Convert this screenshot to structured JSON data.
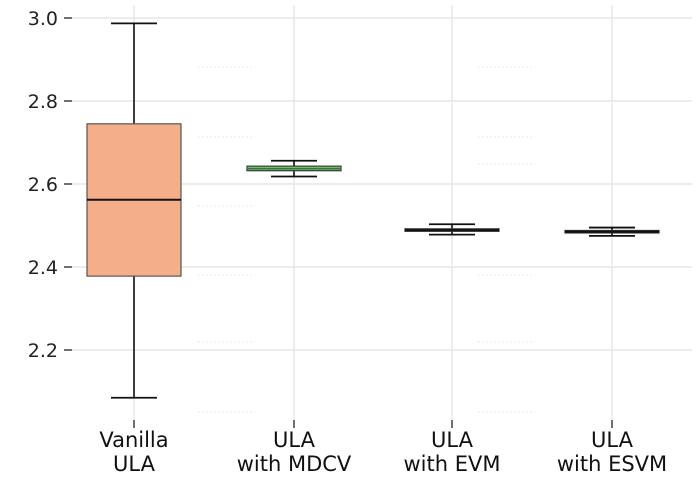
{
  "chart_data": {
    "type": "box",
    "title": "",
    "xlabel": "",
    "ylabel": "",
    "ylim": [
      2.04,
      3.02
    ],
    "yticks": [
      2.2,
      2.4,
      2.6,
      2.8,
      3.0
    ],
    "ytick_labels": [
      "2.2",
      "2.4",
      "2.6",
      "2.8",
      "3.0"
    ],
    "grid": true,
    "categories": [
      [
        "Vanilla",
        "ULA"
      ],
      [
        "ULA",
        "with MDCV"
      ],
      [
        "ULA",
        "with EVM"
      ],
      [
        "ULA",
        "with ESVM"
      ]
    ],
    "boxes": [
      {
        "whisker_low": 2.085,
        "q1": 2.378,
        "median": 2.562,
        "q3": 2.745,
        "whisker_high": 2.987,
        "fill": "#f4ae8a",
        "edge": "#555555",
        "median_color": "#111111"
      },
      {
        "whisker_low": 2.618,
        "q1": 2.632,
        "median": 2.637,
        "q3": 2.643,
        "whisker_high": 2.656,
        "fill": "#a8d8a0",
        "edge": "#333333",
        "median_color": "#2e7d32"
      },
      {
        "whisker_low": 2.478,
        "q1": 2.486,
        "median": 2.489,
        "q3": 2.492,
        "whisker_high": 2.503,
        "fill": "#b0b0d8",
        "edge": "#333333",
        "median_color": "#111111"
      },
      {
        "whisker_low": 2.475,
        "q1": 2.482,
        "median": 2.485,
        "q3": 2.488,
        "whisker_high": 2.495,
        "fill": "#c8c8c8",
        "edge": "#333333",
        "median_color": "#111111"
      }
    ]
  }
}
